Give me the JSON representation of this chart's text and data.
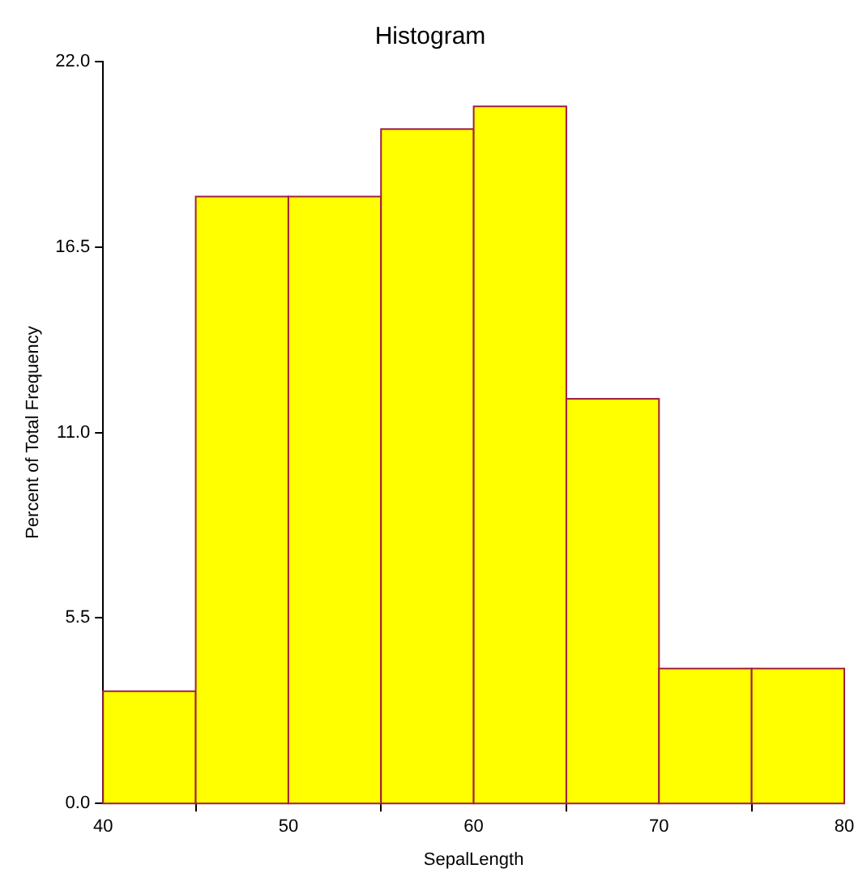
{
  "chart_data": {
    "type": "histogram",
    "title": "Histogram",
    "xlabel": "SepalLength",
    "ylabel": "Percent of Total Frequency",
    "bins": [
      40,
      45,
      50,
      55,
      60,
      65,
      70,
      75,
      80
    ],
    "values": [
      3.33,
      18.0,
      18.0,
      20.0,
      20.67,
      12.0,
      4.0,
      4.0
    ],
    "color": "#ffff00",
    "xlim": [
      40,
      80
    ],
    "xticks": [
      40,
      50,
      60,
      70,
      80
    ],
    "ylim": [
      0,
      22
    ],
    "yticks": [
      {
        "value": 0,
        "label": "0.0"
      },
      {
        "value": 5.5,
        "label": "5.5"
      },
      {
        "value": 11,
        "label": "11.0"
      },
      {
        "value": 16.5,
        "label": "16.5"
      },
      {
        "value": 22,
        "label": "22.0"
      }
    ],
    "grid": false,
    "legend": false
  }
}
